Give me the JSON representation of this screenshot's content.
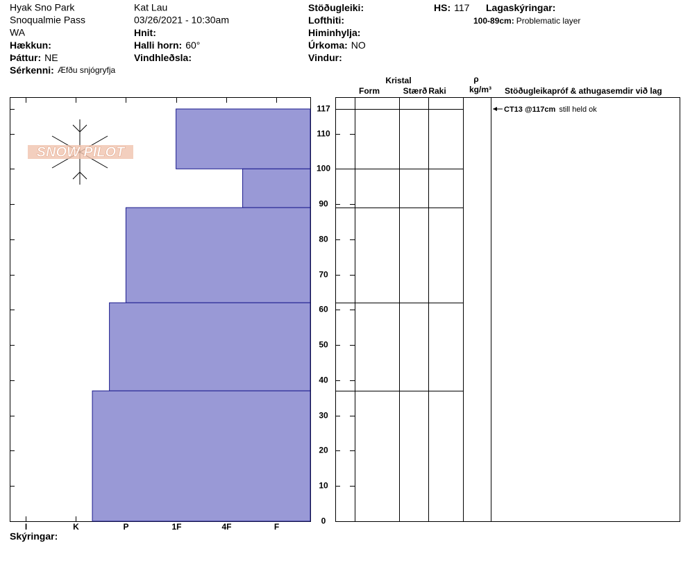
{
  "header": {
    "site": [
      "Hyak Sno Park",
      "Snoqualmie Pass",
      "WA"
    ],
    "observer": "Kat Lau",
    "datetime": "03/26/2021 - 10:30am",
    "fields": [
      {
        "label": "Hækkun:"
      },
      {
        "label": "Þáttur:",
        "value": "NE"
      },
      {
        "label": "Sérkenni:",
        "value": "Æfðu snjógryfja"
      },
      {
        "label": "Hnit:"
      },
      {
        "label": "Halli horn:",
        "value": "60°"
      },
      {
        "label": "Vindhleðsla:"
      },
      {
        "label": "Stöðugleiki:"
      },
      {
        "label": "Lofthiti:"
      },
      {
        "label": "Himinhylja:"
      },
      {
        "label": "Úrkoma:",
        "value": "NO"
      },
      {
        "label": "Vindur:"
      },
      {
        "label": "HS:",
        "value": 117
      },
      {
        "label": "Lagaskýringar:"
      }
    ],
    "layer_note": {
      "range": "100-89cm:",
      "text": "Problematic layer"
    }
  },
  "logo": "SNOW PILOT",
  "columns": {
    "crystal": "Kristal",
    "form": "Form",
    "size": "Stærð",
    "moisture": "Raki",
    "density": "ρ",
    "density_unit": "kg/m³",
    "tests": "Stöðugleikapróf & athugasemdir við lag"
  },
  "profile": {
    "type": "snow-profile",
    "color": "#9999d6",
    "ylim": [
      0,
      117
    ],
    "yticks": [
      0,
      10,
      20,
      30,
      40,
      50,
      60,
      70,
      80,
      90,
      100,
      110,
      117
    ],
    "xlim": [
      6.32,
      0.32
    ],
    "xticks": [
      {
        "value": 6,
        "label": "I"
      },
      {
        "value": 5,
        "label": "K"
      },
      {
        "value": 4,
        "label": "P"
      },
      {
        "value": 3,
        "label": "1F"
      },
      {
        "value": 2,
        "label": "4F"
      },
      {
        "value": 1,
        "label": "F"
      }
    ],
    "layers": [
      {
        "top": 117,
        "bottom": 100,
        "hardness": 3
      },
      {
        "top": 100,
        "bottom": 89,
        "hardness": 1.67
      },
      {
        "top": 89,
        "bottom": 62,
        "hardness": 4
      },
      {
        "top": 62,
        "bottom": 37,
        "hardness": 4.33
      },
      {
        "top": 37,
        "bottom": 0,
        "hardness": 4.67
      }
    ],
    "tests": [
      {
        "depth": 117,
        "label": "CT13 @117cm",
        "text": "still held ok"
      }
    ]
  },
  "footer": "Skýringar:"
}
